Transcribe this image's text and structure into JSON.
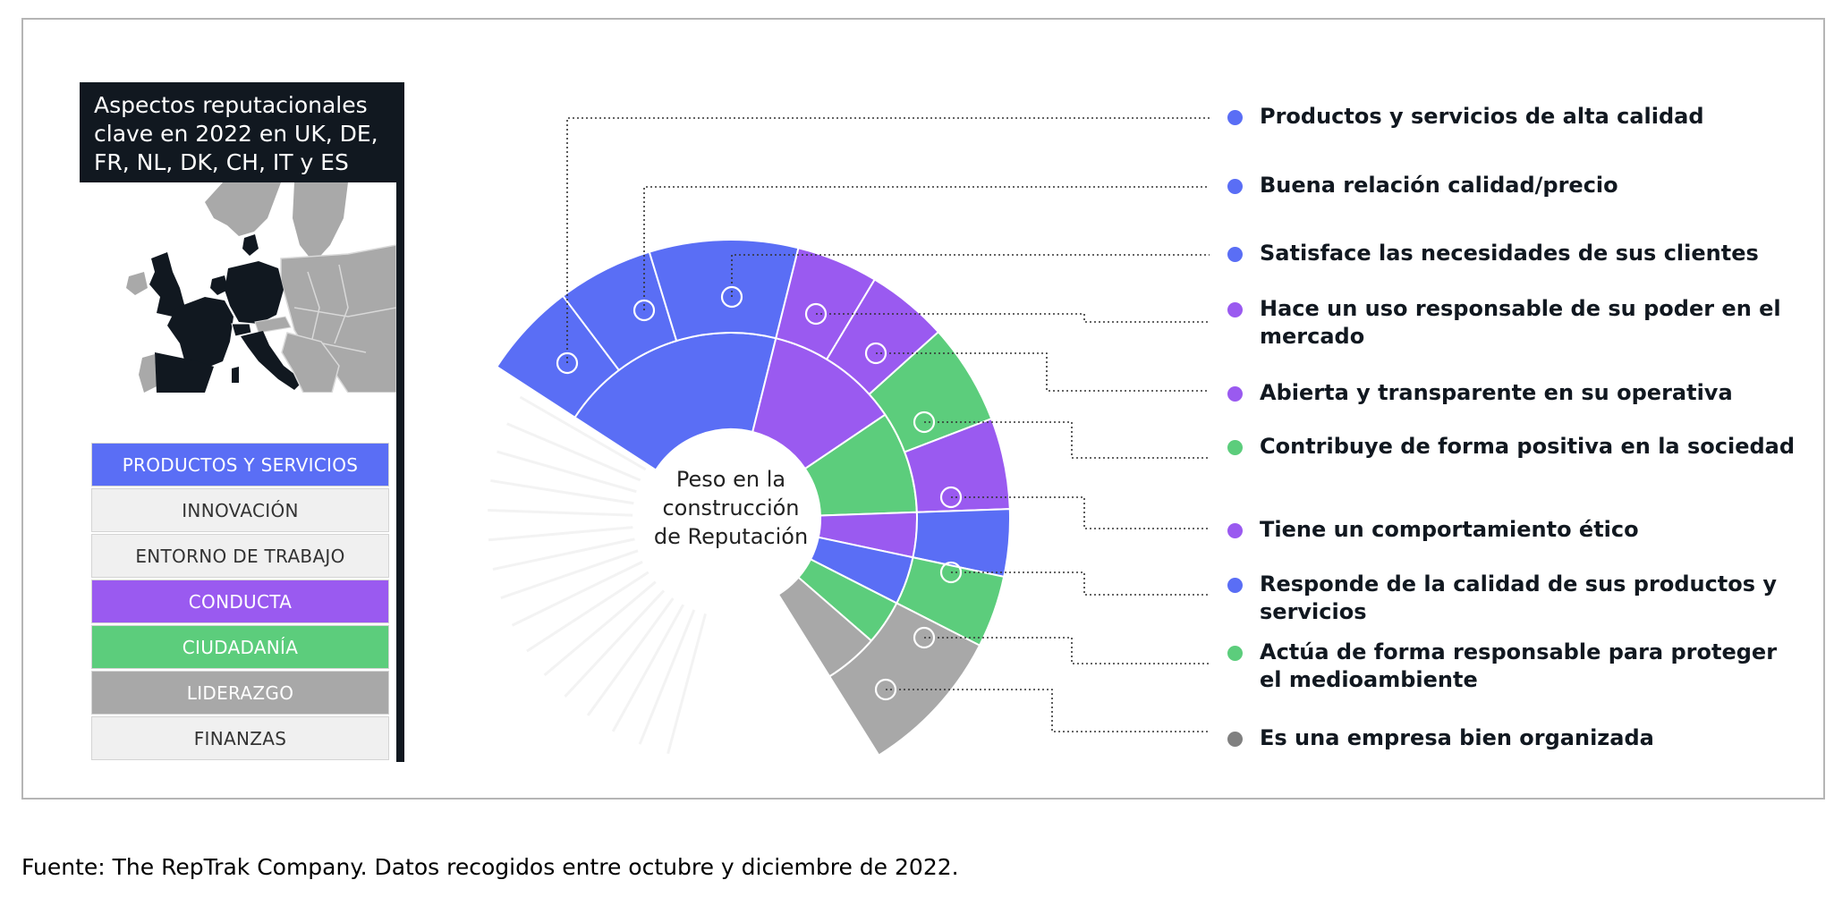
{
  "panel": {
    "title": "Aspectos reputacionales clave en 2022 en UK, DE, FR, NL, DK, CH, IT y ES"
  },
  "categories": [
    {
      "label": "PRODUCTOS Y SERVICIOS",
      "bg": "#5a6ef5",
      "fg": "#ffffff"
    },
    {
      "label": "INNOVACIÓN",
      "bg": "#f0f0f0",
      "fg": "#333333"
    },
    {
      "label": "ENTORNO DE TRABAJO",
      "bg": "#f0f0f0",
      "fg": "#333333"
    },
    {
      "label": "CONDUCTA",
      "bg": "#9a5af0",
      "fg": "#ffffff"
    },
    {
      "label": "CIUDADANÍA",
      "bg": "#5ccd7c",
      "fg": "#ffffff"
    },
    {
      "label": "LIDERAZGO",
      "bg": "#a8a8a8",
      "fg": "#ffffff"
    },
    {
      "label": "FINANZAS",
      "bg": "#f0f0f0",
      "fg": "#333333"
    }
  ],
  "center_label": "Peso en la construcción de Reputación",
  "attributes": [
    {
      "label": "Productos y servicios de alta calidad",
      "dot": "#5a6ef5"
    },
    {
      "label": "Buena relación calidad/precio",
      "dot": "#5a6ef5"
    },
    {
      "label": "Satisface las necesidades de sus clientes",
      "dot": "#5a6ef5"
    },
    {
      "label": "Hace un uso responsable de su poder en el mercado",
      "dot": "#9a5af0"
    },
    {
      "label": "Abierta y transparente en su operativa",
      "dot": "#9a5af0"
    },
    {
      "label": "Contribuye de forma positiva en la sociedad",
      "dot": "#5ccd7c"
    },
    {
      "label": "Tiene un comportamiento ético",
      "dot": "#9a5af0"
    },
    {
      "label": "Responde de la calidad de sus productos y servicios",
      "dot": "#5a6ef5"
    },
    {
      "label": "Actúa de forma responsable para proteger el medioambiente",
      "dot": "#5ccd7c"
    },
    {
      "label": "Es una empresa bien organizada",
      "dot": "#808080"
    }
  ],
  "colors": {
    "productos": "#5a6ef5",
    "conducta": "#9a5af0",
    "ciudadania": "#5ccd7c",
    "liderazgo": "#a8a8a8",
    "dark": "#111820"
  },
  "map": {
    "highlighted": "#111820",
    "others": "#a9a9a9"
  },
  "source": "Fuente: The RepTrak Company. Datos recogidos entre octubre y diciembre de 2022."
}
